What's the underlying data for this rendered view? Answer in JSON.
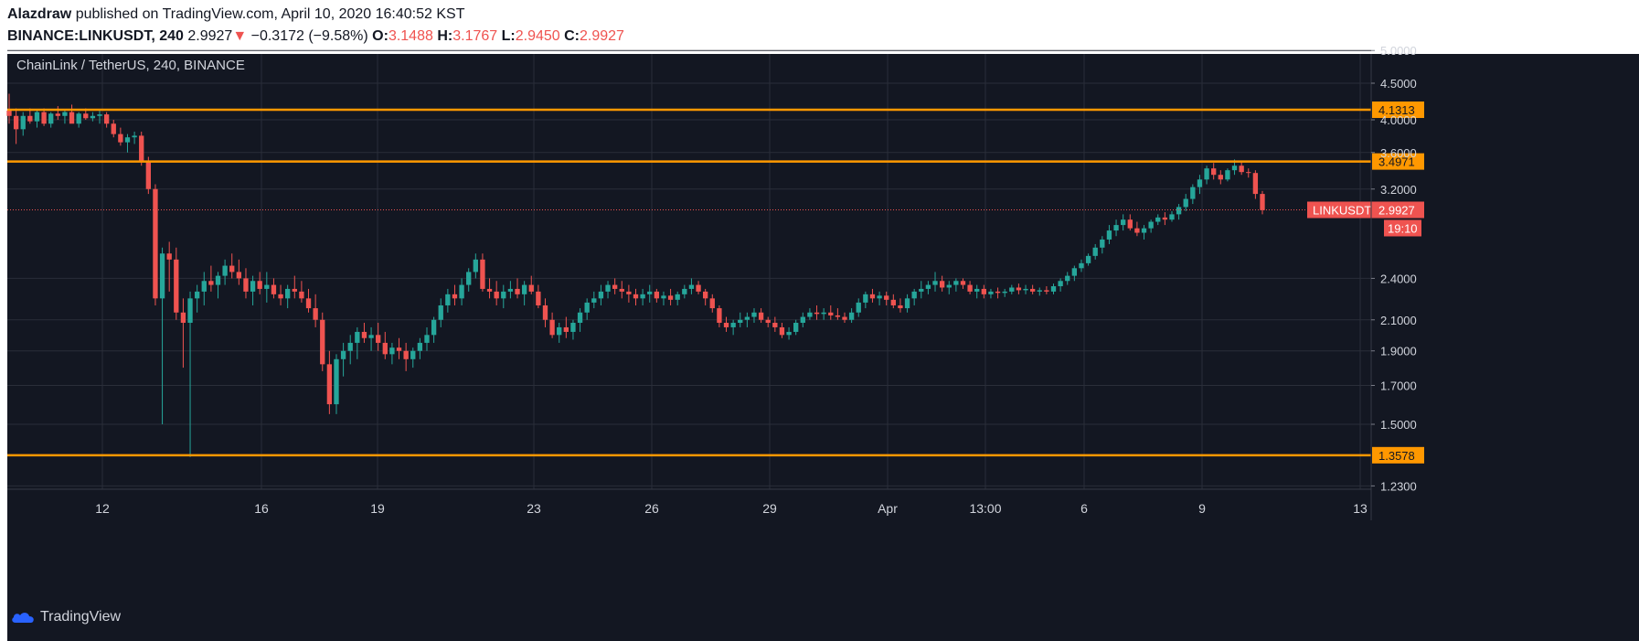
{
  "header": {
    "author": "Alazdraw",
    "published": "published on TradingView.com, April 10, 2020 16:40:52 KST",
    "symbol": "BINANCE:LINKUSDT, 240",
    "last": "2.9927",
    "arrow": "▼",
    "change": "−0.3172 (−9.58%)",
    "open_label": "O:",
    "open": "3.1488",
    "high_label": "H:",
    "high": "3.1767",
    "low_label": "L:",
    "low": "2.9450",
    "close_label": "C:",
    "close": "2.9927"
  },
  "chart_title": "ChainLink / TetherUS, 240, BINANCE",
  "brand": "TradingView",
  "colors": {
    "background": "#131722",
    "grid": "#2a2e39",
    "up": "#26a69a",
    "down": "#ef5350",
    "level": "#ff9800",
    "text": "#d1d4dc"
  },
  "chart_data": {
    "type": "candlestick",
    "scale": "log",
    "y_ticks": [
      "5.0000",
      "4.5000",
      "4.0000",
      "3.6000",
      "3.2000",
      "2.4000",
      "2.1000",
      "1.9000",
      "1.7000",
      "1.5000",
      "1.2300"
    ],
    "x_ticks": [
      "12",
      "16",
      "19",
      "23",
      "26",
      "29",
      "Apr",
      "13:00",
      "6",
      "9",
      "13"
    ],
    "levels": [
      {
        "value": 4.1313,
        "label": "4.1313"
      },
      {
        "value": 3.4971,
        "label": "3.4971"
      },
      {
        "value": 1.3578,
        "label": "1.3578"
      }
    ],
    "last_price": {
      "symbol": "LINKUSDT",
      "value": 2.9927,
      "label": "2.9927",
      "countdown": "19:10"
    },
    "candles_ohlc": [
      [
        4.12,
        4.35,
        3.95,
        4.05
      ],
      [
        4.05,
        4.15,
        3.7,
        3.88
      ],
      [
        3.88,
        4.1,
        3.8,
        4.05
      ],
      [
        4.05,
        4.15,
        3.95,
        3.98
      ],
      [
        3.98,
        4.12,
        3.9,
        4.1
      ],
      [
        4.1,
        4.15,
        3.92,
        3.95
      ],
      [
        3.95,
        4.1,
        3.9,
        4.08
      ],
      [
        4.08,
        4.18,
        4.0,
        4.05
      ],
      [
        4.05,
        4.12,
        3.95,
        4.1
      ],
      [
        4.1,
        4.2,
        4.02,
        3.95
      ],
      [
        3.95,
        4.1,
        3.9,
        4.08
      ],
      [
        4.08,
        4.15,
        4.0,
        4.02
      ],
      [
        4.02,
        4.1,
        3.98,
        4.05
      ],
      [
        4.05,
        4.12,
        3.95,
        4.07
      ],
      [
        4.07,
        4.1,
        3.9,
        3.95
      ],
      [
        3.95,
        4.0,
        3.78,
        3.82
      ],
      [
        3.82,
        3.9,
        3.68,
        3.72
      ],
      [
        3.72,
        3.82,
        3.6,
        3.78
      ],
      [
        3.78,
        3.85,
        3.7,
        3.8
      ],
      [
        3.8,
        3.85,
        3.45,
        3.5
      ],
      [
        3.5,
        3.55,
        3.15,
        3.2
      ],
      [
        3.2,
        3.25,
        2.2,
        2.25
      ],
      [
        2.25,
        2.65,
        1.5,
        2.6
      ],
      [
        2.6,
        2.7,
        2.3,
        2.55
      ],
      [
        2.55,
        2.65,
        2.1,
        2.15
      ],
      [
        2.15,
        2.25,
        1.8,
        2.08
      ],
      [
        2.08,
        2.3,
        1.35,
        2.25
      ],
      [
        2.25,
        2.35,
        2.15,
        2.3
      ],
      [
        2.3,
        2.45,
        2.2,
        2.38
      ],
      [
        2.38,
        2.5,
        2.3,
        2.35
      ],
      [
        2.35,
        2.45,
        2.25,
        2.42
      ],
      [
        2.42,
        2.55,
        2.35,
        2.5
      ],
      [
        2.5,
        2.6,
        2.4,
        2.45
      ],
      [
        2.45,
        2.55,
        2.35,
        2.4
      ],
      [
        2.4,
        2.48,
        2.25,
        2.3
      ],
      [
        2.3,
        2.42,
        2.2,
        2.38
      ],
      [
        2.38,
        2.45,
        2.28,
        2.32
      ],
      [
        2.32,
        2.45,
        2.22,
        2.35
      ],
      [
        2.35,
        2.4,
        2.25,
        2.28
      ],
      [
        2.28,
        2.35,
        2.2,
        2.25
      ],
      [
        2.25,
        2.35,
        2.18,
        2.32
      ],
      [
        2.32,
        2.42,
        2.25,
        2.3
      ],
      [
        2.3,
        2.38,
        2.22,
        2.25
      ],
      [
        2.25,
        2.32,
        2.15,
        2.18
      ],
      [
        2.18,
        2.28,
        2.05,
        2.1
      ],
      [
        2.1,
        2.15,
        1.78,
        1.82
      ],
      [
        1.82,
        1.9,
        1.55,
        1.6
      ],
      [
        1.6,
        1.88,
        1.55,
        1.85
      ],
      [
        1.85,
        1.95,
        1.75,
        1.9
      ],
      [
        1.9,
        2.0,
        1.82,
        1.95
      ],
      [
        1.95,
        2.05,
        1.85,
        2.02
      ],
      [
        2.02,
        2.08,
        1.95,
        1.98
      ],
      [
        1.98,
        2.05,
        1.9,
        2.0
      ],
      [
        2.0,
        2.08,
        1.9,
        1.95
      ],
      [
        1.95,
        2.02,
        1.85,
        1.88
      ],
      [
        1.88,
        1.95,
        1.82,
        1.92
      ],
      [
        1.92,
        1.98,
        1.85,
        1.9
      ],
      [
        1.9,
        1.95,
        1.78,
        1.85
      ],
      [
        1.85,
        1.92,
        1.8,
        1.9
      ],
      [
        1.9,
        1.98,
        1.85,
        1.95
      ],
      [
        1.95,
        2.05,
        1.9,
        2.0
      ],
      [
        2.0,
        2.12,
        1.95,
        2.1
      ],
      [
        2.1,
        2.25,
        2.05,
        2.2
      ],
      [
        2.2,
        2.32,
        2.15,
        2.28
      ],
      [
        2.28,
        2.35,
        2.2,
        2.25
      ],
      [
        2.25,
        2.4,
        2.2,
        2.35
      ],
      [
        2.35,
        2.48,
        2.3,
        2.45
      ],
      [
        2.45,
        2.6,
        2.4,
        2.55
      ],
      [
        2.55,
        2.6,
        2.3,
        2.32
      ],
      [
        2.32,
        2.4,
        2.25,
        2.3
      ],
      [
        2.3,
        2.38,
        2.2,
        2.25
      ],
      [
        2.25,
        2.35,
        2.18,
        2.3
      ],
      [
        2.3,
        2.38,
        2.25,
        2.32
      ],
      [
        2.32,
        2.4,
        2.25,
        2.28
      ],
      [
        2.28,
        2.38,
        2.2,
        2.35
      ],
      [
        2.35,
        2.42,
        2.28,
        2.3
      ],
      [
        2.3,
        2.35,
        2.18,
        2.2
      ],
      [
        2.2,
        2.25,
        2.05,
        2.1
      ],
      [
        2.1,
        2.15,
        1.98,
        2.0
      ],
      [
        2.0,
        2.08,
        1.95,
        2.05
      ],
      [
        2.05,
        2.12,
        1.98,
        2.02
      ],
      [
        2.02,
        2.1,
        1.97,
        2.08
      ],
      [
        2.08,
        2.18,
        2.02,
        2.15
      ],
      [
        2.15,
        2.25,
        2.1,
        2.22
      ],
      [
        2.22,
        2.3,
        2.18,
        2.25
      ],
      [
        2.25,
        2.35,
        2.2,
        2.3
      ],
      [
        2.3,
        2.38,
        2.25,
        2.35
      ],
      [
        2.35,
        2.4,
        2.28,
        2.32
      ],
      [
        2.32,
        2.38,
        2.25,
        2.3
      ],
      [
        2.3,
        2.35,
        2.22,
        2.28
      ],
      [
        2.28,
        2.32,
        2.2,
        2.25
      ],
      [
        2.25,
        2.32,
        2.2,
        2.28
      ],
      [
        2.28,
        2.35,
        2.22,
        2.3
      ],
      [
        2.3,
        2.32,
        2.22,
        2.25
      ],
      [
        2.25,
        2.3,
        2.2,
        2.27
      ],
      [
        2.27,
        2.32,
        2.2,
        2.24
      ],
      [
        2.24,
        2.3,
        2.2,
        2.28
      ],
      [
        2.28,
        2.35,
        2.25,
        2.32
      ],
      [
        2.32,
        2.4,
        2.28,
        2.35
      ],
      [
        2.35,
        2.38,
        2.28,
        2.3
      ],
      [
        2.3,
        2.32,
        2.2,
        2.25
      ],
      [
        2.25,
        2.28,
        2.15,
        2.18
      ],
      [
        2.18,
        2.2,
        2.05,
        2.08
      ],
      [
        2.08,
        2.12,
        2.02,
        2.05
      ],
      [
        2.05,
        2.1,
        2.0,
        2.08
      ],
      [
        2.08,
        2.15,
        2.05,
        2.1
      ],
      [
        2.1,
        2.15,
        2.05,
        2.12
      ],
      [
        2.12,
        2.18,
        2.08,
        2.15
      ],
      [
        2.15,
        2.18,
        2.08,
        2.1
      ],
      [
        2.1,
        2.12,
        2.05,
        2.08
      ],
      [
        2.08,
        2.12,
        2.02,
        2.05
      ],
      [
        2.05,
        2.08,
        1.98,
        2.0
      ],
      [
        2.0,
        2.05,
        1.97,
        2.02
      ],
      [
        2.02,
        2.1,
        2.0,
        2.08
      ],
      [
        2.08,
        2.15,
        2.05,
        2.12
      ],
      [
        2.12,
        2.18,
        2.1,
        2.15
      ],
      [
        2.15,
        2.2,
        2.1,
        2.14
      ],
      [
        2.14,
        2.18,
        2.1,
        2.15
      ],
      [
        2.15,
        2.2,
        2.1,
        2.13
      ],
      [
        2.13,
        2.18,
        2.1,
        2.12
      ],
      [
        2.12,
        2.15,
        2.08,
        2.1
      ],
      [
        2.1,
        2.18,
        2.08,
        2.15
      ],
      [
        2.15,
        2.25,
        2.12,
        2.22
      ],
      [
        2.22,
        2.3,
        2.18,
        2.28
      ],
      [
        2.28,
        2.32,
        2.22,
        2.25
      ],
      [
        2.25,
        2.3,
        2.2,
        2.27
      ],
      [
        2.27,
        2.3,
        2.2,
        2.24
      ],
      [
        2.24,
        2.28,
        2.18,
        2.2
      ],
      [
        2.2,
        2.25,
        2.15,
        2.18
      ],
      [
        2.18,
        2.28,
        2.15,
        2.25
      ],
      [
        2.25,
        2.32,
        2.2,
        2.3
      ],
      [
        2.3,
        2.38,
        2.25,
        2.32
      ],
      [
        2.32,
        2.38,
        2.28,
        2.35
      ],
      [
        2.35,
        2.45,
        2.3,
        2.38
      ],
      [
        2.38,
        2.42,
        2.3,
        2.33
      ],
      [
        2.33,
        2.38,
        2.28,
        2.35
      ],
      [
        2.35,
        2.4,
        2.3,
        2.38
      ],
      [
        2.38,
        2.4,
        2.32,
        2.35
      ],
      [
        2.35,
        2.38,
        2.28,
        2.3
      ],
      [
        2.3,
        2.35,
        2.25,
        2.32
      ],
      [
        2.32,
        2.35,
        2.25,
        2.28
      ],
      [
        2.28,
        2.32,
        2.25,
        2.3
      ],
      [
        2.3,
        2.33,
        2.25,
        2.29
      ],
      [
        2.29,
        2.32,
        2.26,
        2.3
      ],
      [
        2.3,
        2.35,
        2.28,
        2.33
      ],
      [
        2.33,
        2.36,
        2.28,
        2.31
      ],
      [
        2.31,
        2.35,
        2.28,
        2.32
      ],
      [
        2.32,
        2.35,
        2.28,
        2.3
      ],
      [
        2.3,
        2.33,
        2.27,
        2.31
      ],
      [
        2.31,
        2.34,
        2.28,
        2.3
      ],
      [
        2.3,
        2.36,
        2.28,
        2.34
      ],
      [
        2.34,
        2.4,
        2.3,
        2.38
      ],
      [
        2.38,
        2.45,
        2.35,
        2.42
      ],
      [
        2.42,
        2.5,
        2.38,
        2.48
      ],
      [
        2.48,
        2.55,
        2.45,
        2.52
      ],
      [
        2.52,
        2.6,
        2.5,
        2.58
      ],
      [
        2.58,
        2.68,
        2.55,
        2.65
      ],
      [
        2.65,
        2.75,
        2.6,
        2.72
      ],
      [
        2.72,
        2.85,
        2.68,
        2.8
      ],
      [
        2.8,
        2.9,
        2.75,
        2.85
      ],
      [
        2.85,
        2.95,
        2.8,
        2.9
      ],
      [
        2.9,
        2.95,
        2.8,
        2.82
      ],
      [
        2.82,
        2.88,
        2.75,
        2.78
      ],
      [
        2.78,
        2.85,
        2.72,
        2.82
      ],
      [
        2.82,
        2.9,
        2.78,
        2.88
      ],
      [
        2.88,
        2.95,
        2.85,
        2.92
      ],
      [
        2.92,
        2.97,
        2.85,
        2.9
      ],
      [
        2.9,
        2.98,
        2.88,
        2.95
      ],
      [
        2.95,
        3.05,
        2.9,
        3.02
      ],
      [
        3.02,
        3.15,
        2.98,
        3.1
      ],
      [
        3.1,
        3.25,
        3.05,
        3.22
      ],
      [
        3.22,
        3.35,
        3.15,
        3.3
      ],
      [
        3.3,
        3.45,
        3.25,
        3.42
      ],
      [
        3.42,
        3.48,
        3.3,
        3.35
      ],
      [
        3.35,
        3.4,
        3.25,
        3.3
      ],
      [
        3.3,
        3.42,
        3.28,
        3.4
      ],
      [
        3.4,
        3.52,
        3.35,
        3.45
      ],
      [
        3.45,
        3.5,
        3.35,
        3.38
      ],
      [
        3.38,
        3.42,
        3.32,
        3.37
      ],
      [
        3.37,
        3.4,
        3.1,
        3.15
      ],
      [
        3.15,
        3.18,
        2.95,
        2.99
      ]
    ]
  }
}
